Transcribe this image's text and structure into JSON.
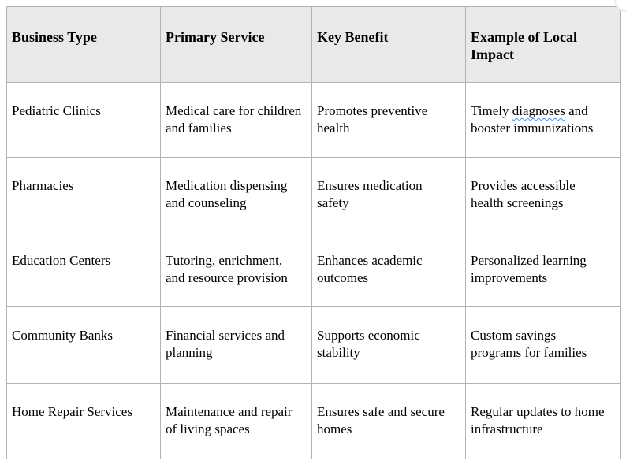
{
  "page": {
    "background": "#ffffff"
  },
  "colors": {
    "table_border": "#b3b3b3",
    "header_background": "#e9e9e9",
    "spellcheck_underline": "#4f8ef7"
  },
  "table": {
    "columns": [
      "Business Type",
      "Primary Service",
      "Key Benefit",
      "Example of Local\nImpact"
    ],
    "rows": [
      {
        "cells": [
          {
            "segments": [
              {
                "text": "Pediatric Clinics"
              }
            ]
          },
          {
            "segments": [
              {
                "text": "Medical care for children\nand families"
              }
            ]
          },
          {
            "segments": [
              {
                "text": "Promotes preventive\nhealth"
              }
            ]
          },
          {
            "segments": [
              {
                "text": "Timely "
              },
              {
                "text": "diagnoses",
                "misspelled": true
              },
              {
                "text": " and\nbooster immunizations"
              }
            ]
          }
        ]
      },
      {
        "cells": [
          {
            "segments": [
              {
                "text": "Pharmacies"
              }
            ]
          },
          {
            "segments": [
              {
                "text": "Medication dispensing\nand counseling"
              }
            ]
          },
          {
            "segments": [
              {
                "text": "Ensures medication\nsafety"
              }
            ]
          },
          {
            "segments": [
              {
                "text": "Provides accessible\nhealth screenings"
              }
            ]
          }
        ]
      },
      {
        "cells": [
          {
            "segments": [
              {
                "text": "Education Centers"
              }
            ]
          },
          {
            "segments": [
              {
                "text": "Tutoring, enrichment,\nand resource provision"
              }
            ]
          },
          {
            "segments": [
              {
                "text": "Enhances academic\noutcomes"
              }
            ]
          },
          {
            "segments": [
              {
                "text": "Personalized learning\nimprovements"
              }
            ]
          }
        ]
      },
      {
        "cells": [
          {
            "segments": [
              {
                "text": "Community Banks"
              }
            ]
          },
          {
            "segments": [
              {
                "text": "Financial services and\nplanning"
              }
            ]
          },
          {
            "segments": [
              {
                "text": "Supports economic\nstability"
              }
            ]
          },
          {
            "segments": [
              {
                "text": "Custom savings\nprograms for families"
              }
            ]
          }
        ]
      },
      {
        "cells": [
          {
            "segments": [
              {
                "text": "Home Repair Services"
              }
            ]
          },
          {
            "segments": [
              {
                "text": "Maintenance and repair\nof living spaces"
              }
            ]
          },
          {
            "segments": [
              {
                "text": "Ensures safe and secure\nhomes"
              }
            ]
          },
          {
            "segments": [
              {
                "text": "Regular updates to home\ninfrastructure"
              }
            ]
          }
        ]
      }
    ]
  }
}
